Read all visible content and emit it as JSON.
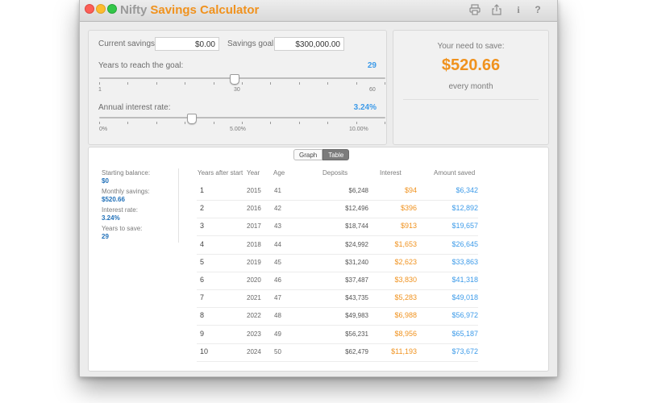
{
  "titlebar": {
    "title_part1": "Nifty",
    "title_part2": "Savings Calculator",
    "icons": [
      "print-icon",
      "share-icon",
      "info-icon",
      "help-icon"
    ],
    "info_glyph": "i",
    "help_glyph": "?"
  },
  "inputs": {
    "current_savings_label": "Current savings:",
    "current_savings_value": "$0.00",
    "savings_goal_label": "Savings goal:",
    "savings_goal_value": "$300,000.00",
    "years": {
      "label": "Years to reach the goal:",
      "value": "29",
      "min": 1,
      "max": 60,
      "current": 29,
      "tick_labels": [
        "1",
        "30",
        "60"
      ]
    },
    "interest": {
      "label": "Annual interest rate:",
      "value": "3.24%",
      "current_fraction": 0.324,
      "tick_labels": [
        "0%",
        "5.00%",
        "10.00%"
      ]
    }
  },
  "result": {
    "title": "Your need to save:",
    "amount": "$520.66",
    "period": "every month"
  },
  "view_toggle": {
    "graph_label": "Graph",
    "table_label": "Table",
    "selected": "Table"
  },
  "summary": {
    "starting_balance_label": "Starting balance:",
    "starting_balance_value": "$0",
    "monthly_savings_label": "Monthly savings:",
    "monthly_savings_value": "$520.66",
    "interest_rate_label": "Interest rate:",
    "interest_rate_value": "3.24%",
    "years_label": "Years to save:",
    "years_value": "29"
  },
  "table": {
    "headers": [
      "Years after start",
      "Year",
      "Age",
      "Deposits",
      "Interest",
      "Amount saved"
    ],
    "rows": [
      {
        "n": "1",
        "year": "2015",
        "age": "41",
        "deposits": "$6,248",
        "interest": "$94",
        "amount": "$6,342"
      },
      {
        "n": "2",
        "year": "2016",
        "age": "42",
        "deposits": "$12,496",
        "interest": "$396",
        "amount": "$12,892"
      },
      {
        "n": "3",
        "year": "2017",
        "age": "43",
        "deposits": "$18,744",
        "interest": "$913",
        "amount": "$19,657"
      },
      {
        "n": "4",
        "year": "2018",
        "age": "44",
        "deposits": "$24,992",
        "interest": "$1,653",
        "amount": "$26,645"
      },
      {
        "n": "5",
        "year": "2019",
        "age": "45",
        "deposits": "$31,240",
        "interest": "$2,623",
        "amount": "$33,863"
      },
      {
        "n": "6",
        "year": "2020",
        "age": "46",
        "deposits": "$37,487",
        "interest": "$3,830",
        "amount": "$41,318"
      },
      {
        "n": "7",
        "year": "2021",
        "age": "47",
        "deposits": "$43,735",
        "interest": "$5,283",
        "amount": "$49,018"
      },
      {
        "n": "8",
        "year": "2022",
        "age": "48",
        "deposits": "$49,983",
        "interest": "$6,988",
        "amount": "$56,972"
      },
      {
        "n": "9",
        "year": "2023",
        "age": "49",
        "deposits": "$56,231",
        "interest": "$8,956",
        "amount": "$65,187"
      },
      {
        "n": "10",
        "year": "2024",
        "age": "50",
        "deposits": "$62,479",
        "interest": "$11,193",
        "amount": "$73,672"
      }
    ]
  },
  "colors": {
    "accent_orange": "#f0921e",
    "accent_blue": "#3d9be9",
    "dark_blue": "#1f6fb8"
  }
}
